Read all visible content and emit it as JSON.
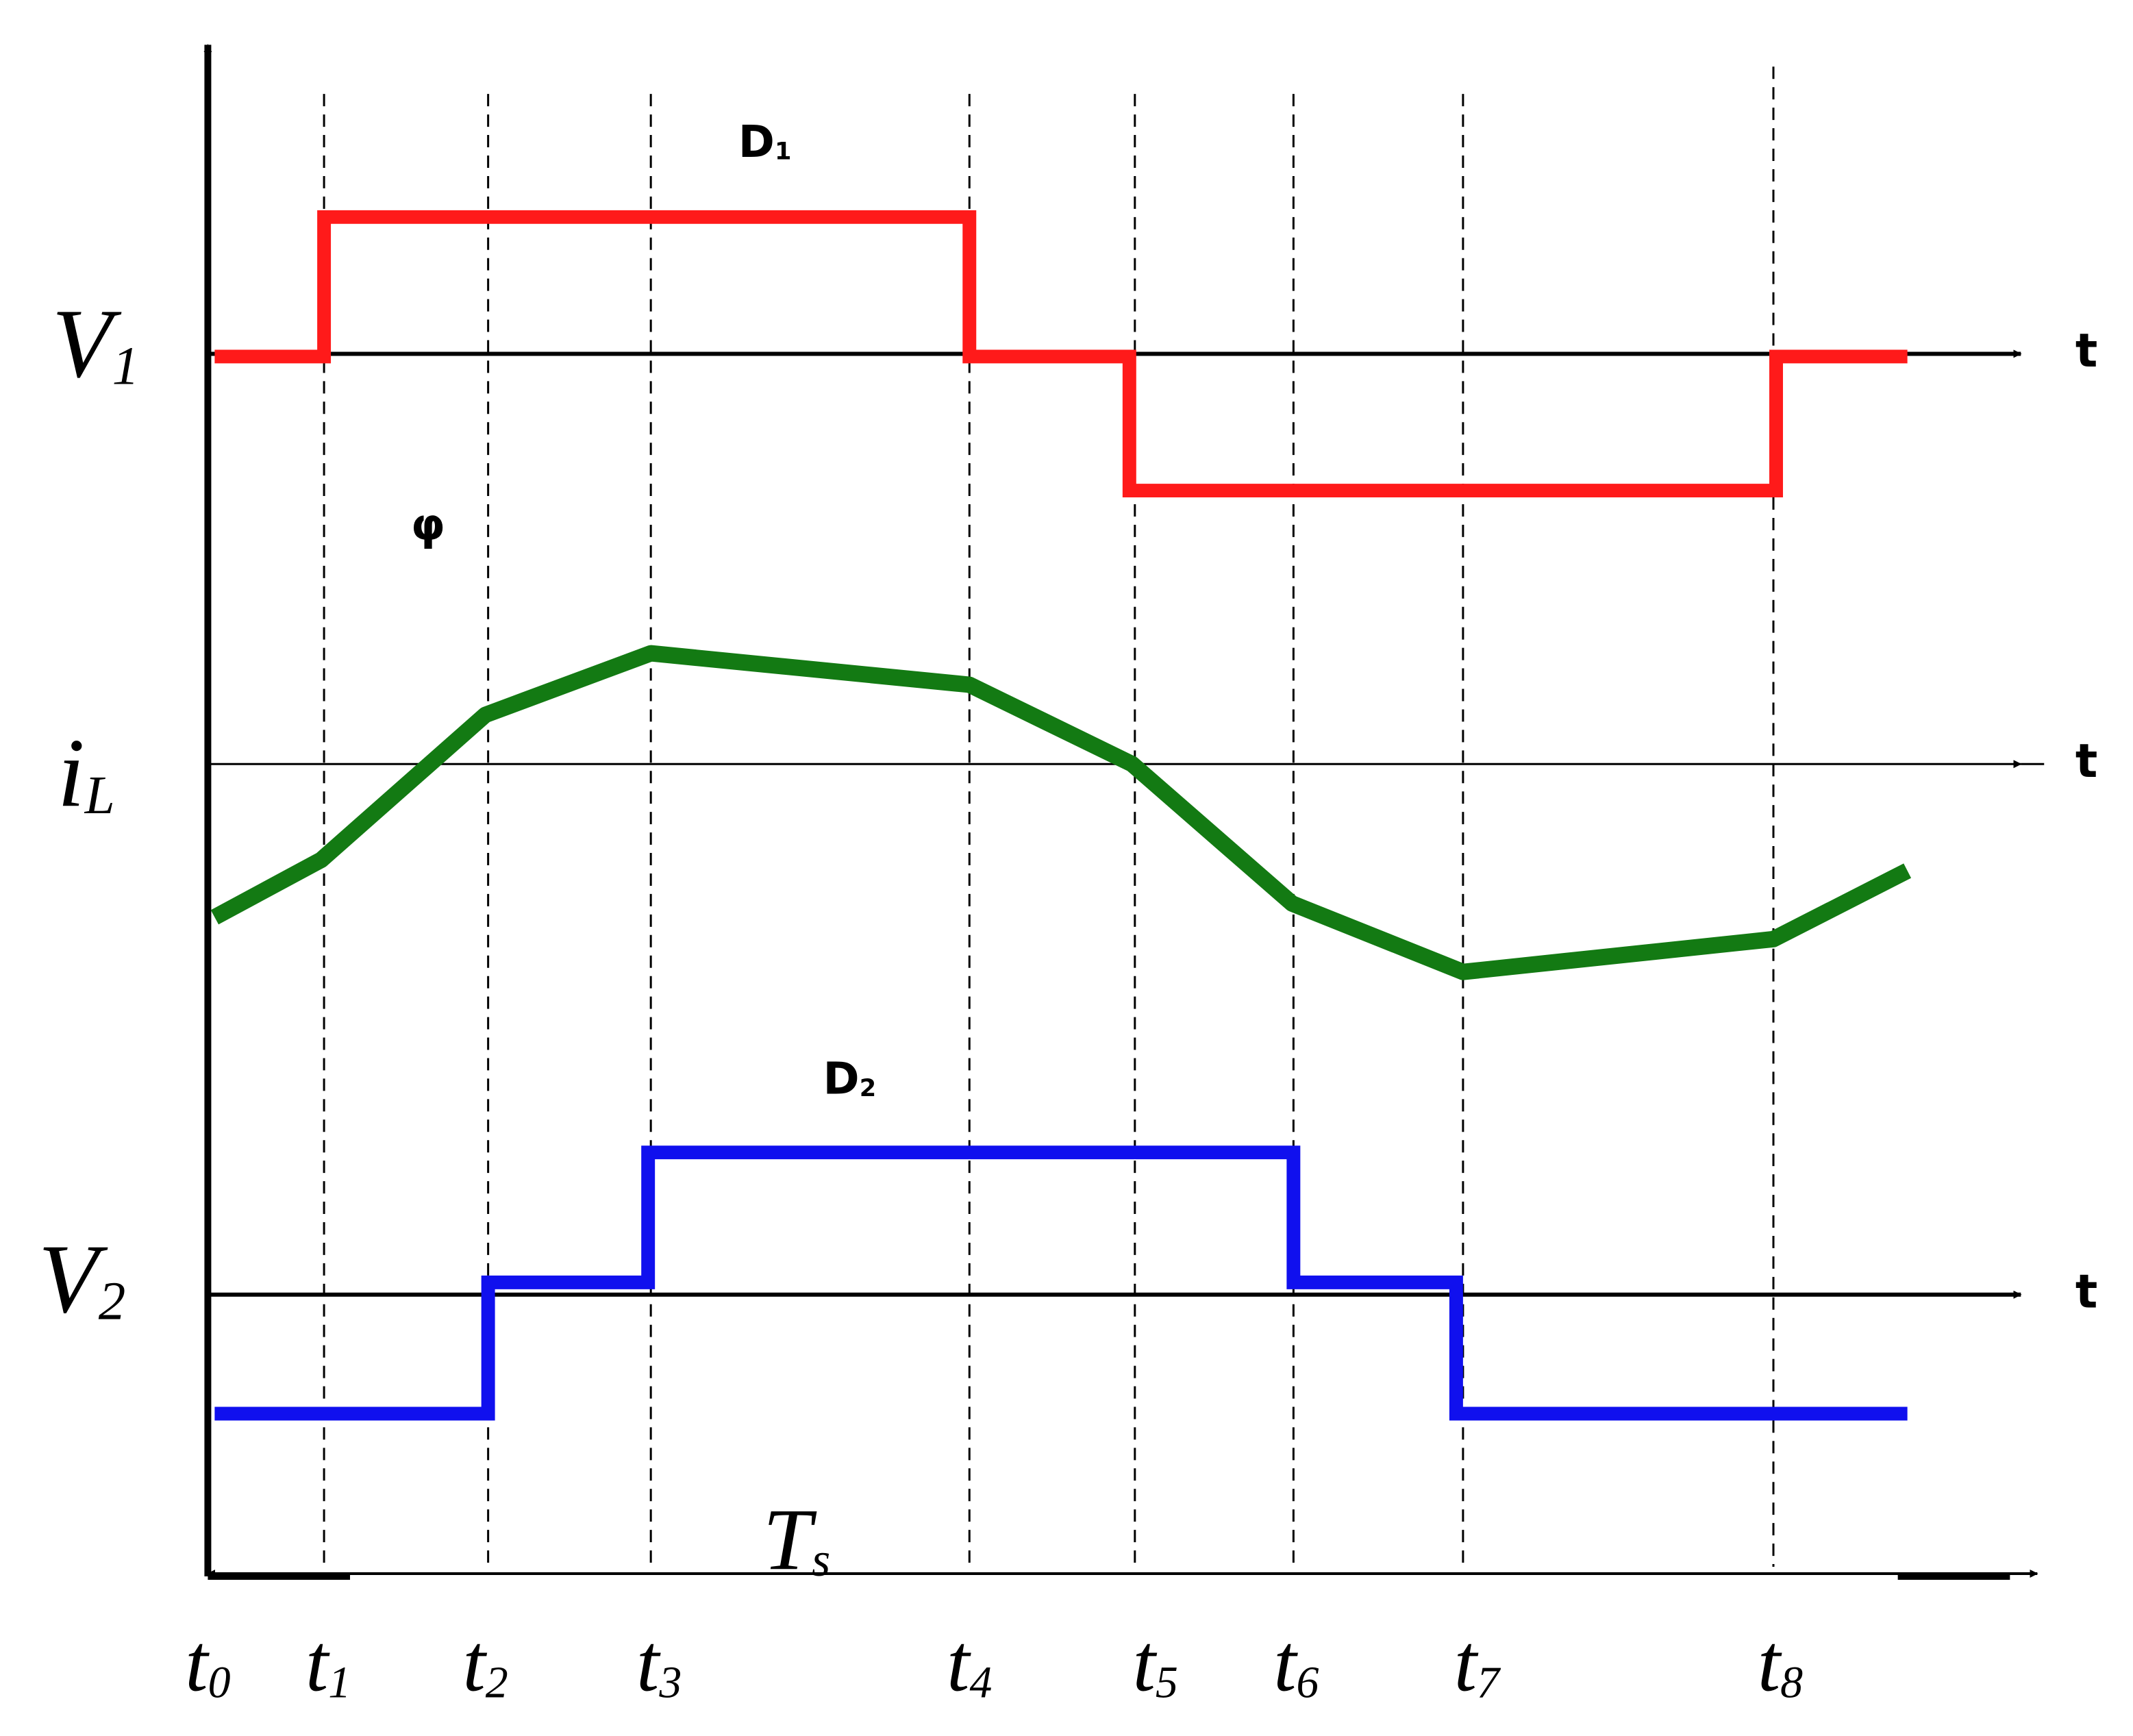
{
  "signals": [
    {
      "symbol": "V",
      "subscript": "1"
    },
    {
      "symbol": "i",
      "subscript": "L"
    },
    {
      "symbol": "V",
      "subscript": "2"
    }
  ],
  "axis_labels": [
    "t",
    "t",
    "t"
  ],
  "annotations": {
    "d1": {
      "symbol": "D",
      "subscript": "1"
    },
    "phi": "φ",
    "d2": {
      "symbol": "D",
      "subscript": "2"
    },
    "period": {
      "symbol": "T",
      "subscript": "s"
    }
  },
  "time_labels": [
    {
      "symbol": "t",
      "subscript": "0"
    },
    {
      "symbol": "t",
      "subscript": "1"
    },
    {
      "symbol": "t",
      "subscript": "2"
    },
    {
      "symbol": "t",
      "subscript": "3"
    },
    {
      "symbol": "t",
      "subscript": "4"
    },
    {
      "symbol": "t",
      "subscript": "5"
    },
    {
      "symbol": "t",
      "subscript": "6"
    },
    {
      "symbol": "t",
      "subscript": "7"
    },
    {
      "symbol": "t",
      "subscript": "8"
    }
  ]
}
